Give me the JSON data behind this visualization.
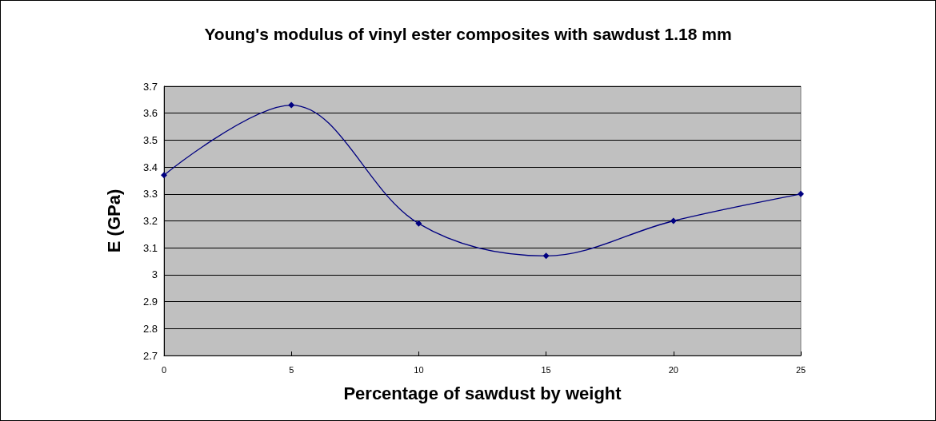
{
  "chart_data": {
    "type": "line",
    "title": "Young's modulus of vinyl ester composites with sawdust 1.18 mm",
    "xlabel": "Percentage of sawdust by weight",
    "ylabel": "E (GPa)",
    "x": [
      0,
      5,
      10,
      15,
      20,
      25
    ],
    "series": [
      {
        "color": "#000080",
        "values": [
          3.37,
          3.63,
          3.19,
          3.07,
          3.2,
          3.3
        ]
      }
    ],
    "xlim": [
      0,
      25
    ],
    "xticks": [
      0,
      5,
      10,
      15,
      20,
      25
    ],
    "ylim": [
      2.7,
      3.7
    ],
    "yticks": [
      2.7,
      2.8,
      2.9,
      3,
      3.1,
      3.2,
      3.3,
      3.4,
      3.5,
      3.6,
      3.7
    ],
    "grid": "y",
    "marker": "diamond",
    "line_style": "solid"
  }
}
